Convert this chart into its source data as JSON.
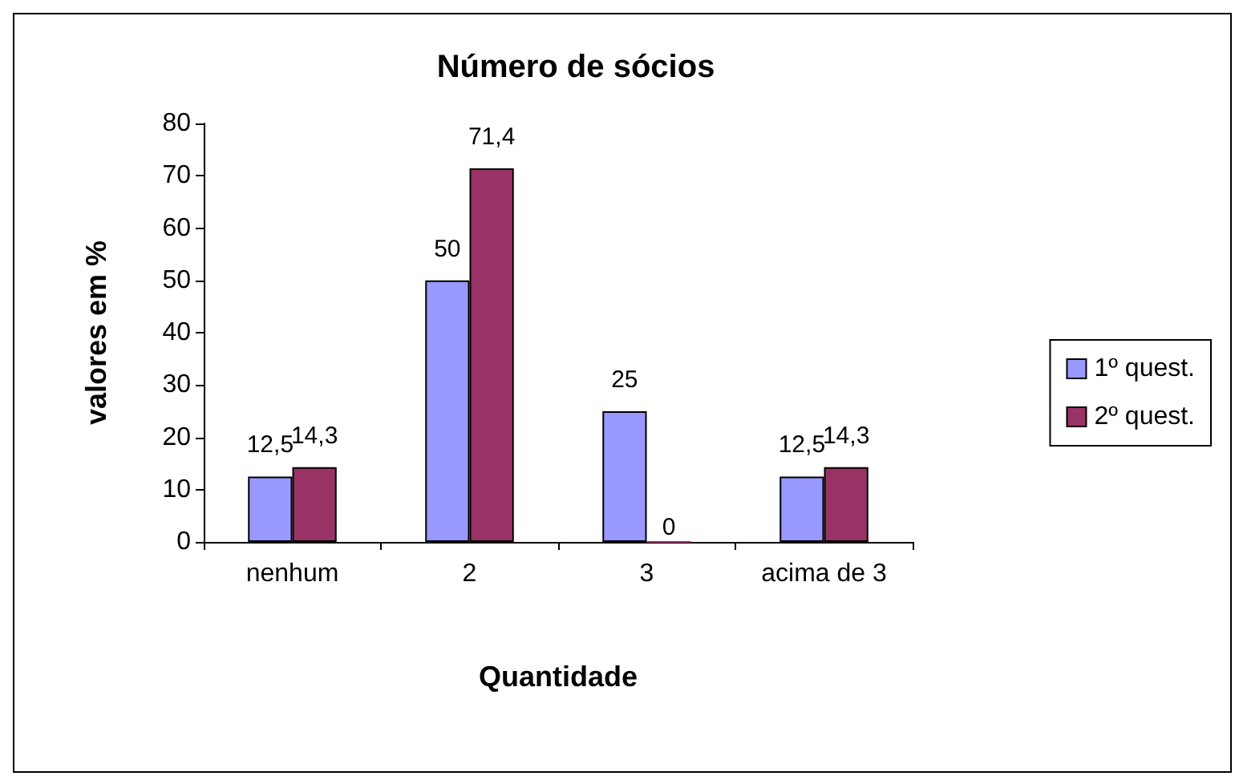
{
  "chart_data": {
    "type": "bar",
    "title": "Número de sócios",
    "xlabel": "Quantidade",
    "ylabel": "valores em %",
    "categories": [
      "nenhum",
      "2",
      "3",
      "acima de 3"
    ],
    "series": [
      {
        "name": "1º quest.",
        "color": "#9999ff",
        "values": [
          12.5,
          50,
          25,
          12.5
        ],
        "value_labels": [
          "12,5",
          "50",
          "25",
          "12,5"
        ]
      },
      {
        "name": "2º quest.",
        "color": "#993366",
        "values": [
          14.3,
          71.4,
          0,
          14.3
        ],
        "value_labels": [
          "14,3",
          "71,4",
          "0",
          "14,3"
        ]
      }
    ],
    "ylim": [
      0,
      80
    ],
    "yticks": [
      0,
      10,
      20,
      30,
      40,
      50,
      60,
      70,
      80
    ],
    "grid": false,
    "legend": "right"
  }
}
